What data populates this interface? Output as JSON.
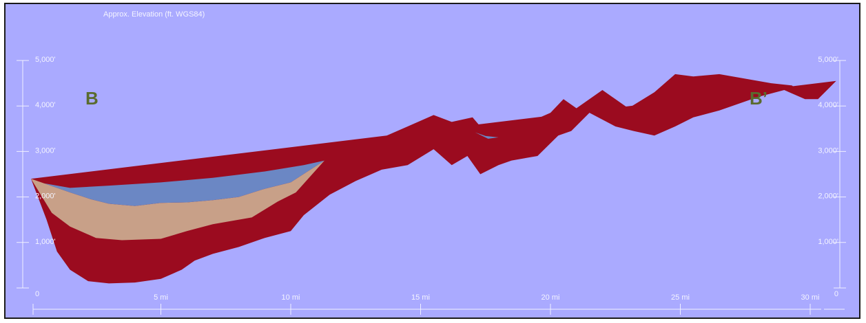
{
  "chart_data": {
    "type": "area",
    "title": "",
    "caption": "Approx. Elevation (ft. WGS84)",
    "ylabel": "",
    "xlabel": "",
    "section_start_label": "B",
    "section_end_label": "B’",
    "xlim": [
      0,
      31
    ],
    "ylim": [
      0,
      5000
    ],
    "x_tick_labels": [
      "5 mi",
      "10 mi",
      "15 mi",
      "20 mi",
      "25 mi",
      "30 mi"
    ],
    "x_tick_values": [
      5,
      10,
      15,
      20,
      25,
      30
    ],
    "y_tick_labels_left": [
      "0",
      "1,000'",
      "2,000'",
      "3,000'",
      "4,000'",
      "5,000'"
    ],
    "y_tick_labels_right": [
      "0",
      "1,000'",
      "2,000'",
      "3,000'",
      "4,000'",
      "5,000'"
    ],
    "y_tick_values": [
      0,
      1000,
      2000,
      3000,
      4000,
      5000
    ],
    "colors": {
      "background": "#aaaaff",
      "red_layer": "#9b0b1f",
      "tan_layer": "#c8a088",
      "blue_layer": "#6b87c4",
      "axis": "#f0f0ff"
    },
    "series": [
      {
        "name": "",
        "color": "#6b87c4",
        "top": [
          [
            0,
            2400
          ],
          [
            0.5,
            2300
          ],
          [
            1.5,
            2200
          ],
          [
            3,
            2250
          ],
          [
            5,
            2320
          ],
          [
            7,
            2420
          ],
          [
            9,
            2560
          ],
          [
            10.5,
            2700
          ],
          [
            11.3,
            2800
          ]
        ],
        "bottom": [
          [
            0,
            2400
          ],
          [
            1.5,
            2100
          ],
          [
            2.3,
            1950
          ],
          [
            3,
            1850
          ],
          [
            4,
            1800
          ],
          [
            5,
            1870
          ],
          [
            6,
            1880
          ],
          [
            7,
            1930
          ],
          [
            8,
            2000
          ],
          [
            9,
            2180
          ],
          [
            10,
            2320
          ],
          [
            11.3,
            2800
          ]
        ]
      },
      {
        "name": "",
        "color": "#6b87c4",
        "top": [
          [
            17.1,
            3420
          ],
          [
            17.5,
            3340
          ],
          [
            18.0,
            3310
          ]
        ],
        "bottom": [
          [
            17.1,
            3420
          ],
          [
            17.6,
            3280
          ],
          [
            18.0,
            3310
          ]
        ]
      },
      {
        "name": "",
        "color": "#c8a088",
        "top": [
          [
            0,
            2400
          ],
          [
            1.5,
            2100
          ],
          [
            2.3,
            1950
          ],
          [
            3,
            1850
          ],
          [
            4,
            1800
          ],
          [
            5,
            1870
          ],
          [
            6,
            1880
          ],
          [
            7,
            1930
          ],
          [
            8,
            2000
          ],
          [
            9,
            2180
          ],
          [
            10,
            2320
          ],
          [
            11.3,
            2800
          ]
        ],
        "bottom": [
          [
            0,
            2400
          ],
          [
            0.8,
            1650
          ],
          [
            1.5,
            1350
          ],
          [
            2.5,
            1100
          ],
          [
            3.5,
            1050
          ],
          [
            5,
            1080
          ],
          [
            6,
            1250
          ],
          [
            7,
            1400
          ],
          [
            8.5,
            1550
          ],
          [
            9.5,
            1900
          ],
          [
            10.2,
            2100
          ],
          [
            11.3,
            2800
          ]
        ]
      },
      {
        "name": "",
        "color": "#9b0b1f",
        "top": [
          [
            0,
            2400
          ],
          [
            0.8,
            1650
          ],
          [
            1.5,
            1350
          ],
          [
            2.5,
            1100
          ],
          [
            3.5,
            1050
          ],
          [
            5,
            1080
          ],
          [
            6,
            1250
          ],
          [
            7,
            1400
          ],
          [
            8.5,
            1550
          ],
          [
            9.5,
            1900
          ],
          [
            10.2,
            2100
          ],
          [
            11.3,
            2800
          ],
          [
            12.5,
            3000
          ],
          [
            13.5,
            3300
          ],
          [
            14.5,
            3550
          ],
          [
            15.5,
            3800
          ],
          [
            16.2,
            3650
          ],
          [
            17,
            3750
          ],
          [
            17.6,
            3350
          ],
          [
            18.2,
            3300
          ],
          [
            19,
            3600
          ],
          [
            20,
            3850
          ],
          [
            20.5,
            4150
          ],
          [
            21,
            3950
          ],
          [
            22,
            4350
          ],
          [
            23,
            3950
          ],
          [
            24,
            4300
          ],
          [
            24.8,
            4700
          ],
          [
            25.5,
            4650
          ],
          [
            26.5,
            4700
          ],
          [
            27.5,
            4600
          ],
          [
            28.5,
            4500
          ],
          [
            29.3,
            4450
          ],
          [
            29.8,
            4200
          ],
          [
            30.3,
            4150
          ],
          [
            31,
            4550
          ]
        ],
        "bottom": [
          [
            31,
            4550
          ],
          [
            30.3,
            4150
          ],
          [
            29.8,
            4150
          ],
          [
            29,
            4350
          ],
          [
            28,
            4200
          ],
          [
            26.5,
            3900
          ],
          [
            25.5,
            3750
          ],
          [
            24.8,
            3550
          ],
          [
            24,
            3350
          ],
          [
            23.2,
            3450
          ],
          [
            22.5,
            3550
          ],
          [
            21.5,
            3850
          ],
          [
            20.8,
            3450
          ],
          [
            20.3,
            3350
          ],
          [
            19.5,
            2900
          ],
          [
            18.5,
            2800
          ],
          [
            18.0,
            2700
          ],
          [
            17.3,
            2500
          ],
          [
            16.8,
            2900
          ],
          [
            16.2,
            2700
          ],
          [
            15.5,
            3050
          ],
          [
            14.5,
            2700
          ],
          [
            13.5,
            2600
          ],
          [
            12.5,
            2350
          ],
          [
            11.5,
            2050
          ],
          [
            10.5,
            1600
          ],
          [
            10,
            1250
          ],
          [
            9,
            1100
          ],
          [
            8,
            900
          ],
          [
            7,
            750
          ],
          [
            6.3,
            600
          ],
          [
            5.8,
            400
          ],
          [
            5,
            200
          ],
          [
            4,
            120
          ],
          [
            3,
            100
          ],
          [
            2.2,
            150
          ],
          [
            1.5,
            400
          ],
          [
            1,
            800
          ],
          [
            0.6,
            1500
          ],
          [
            0,
            2400
          ]
        ]
      }
    ]
  }
}
